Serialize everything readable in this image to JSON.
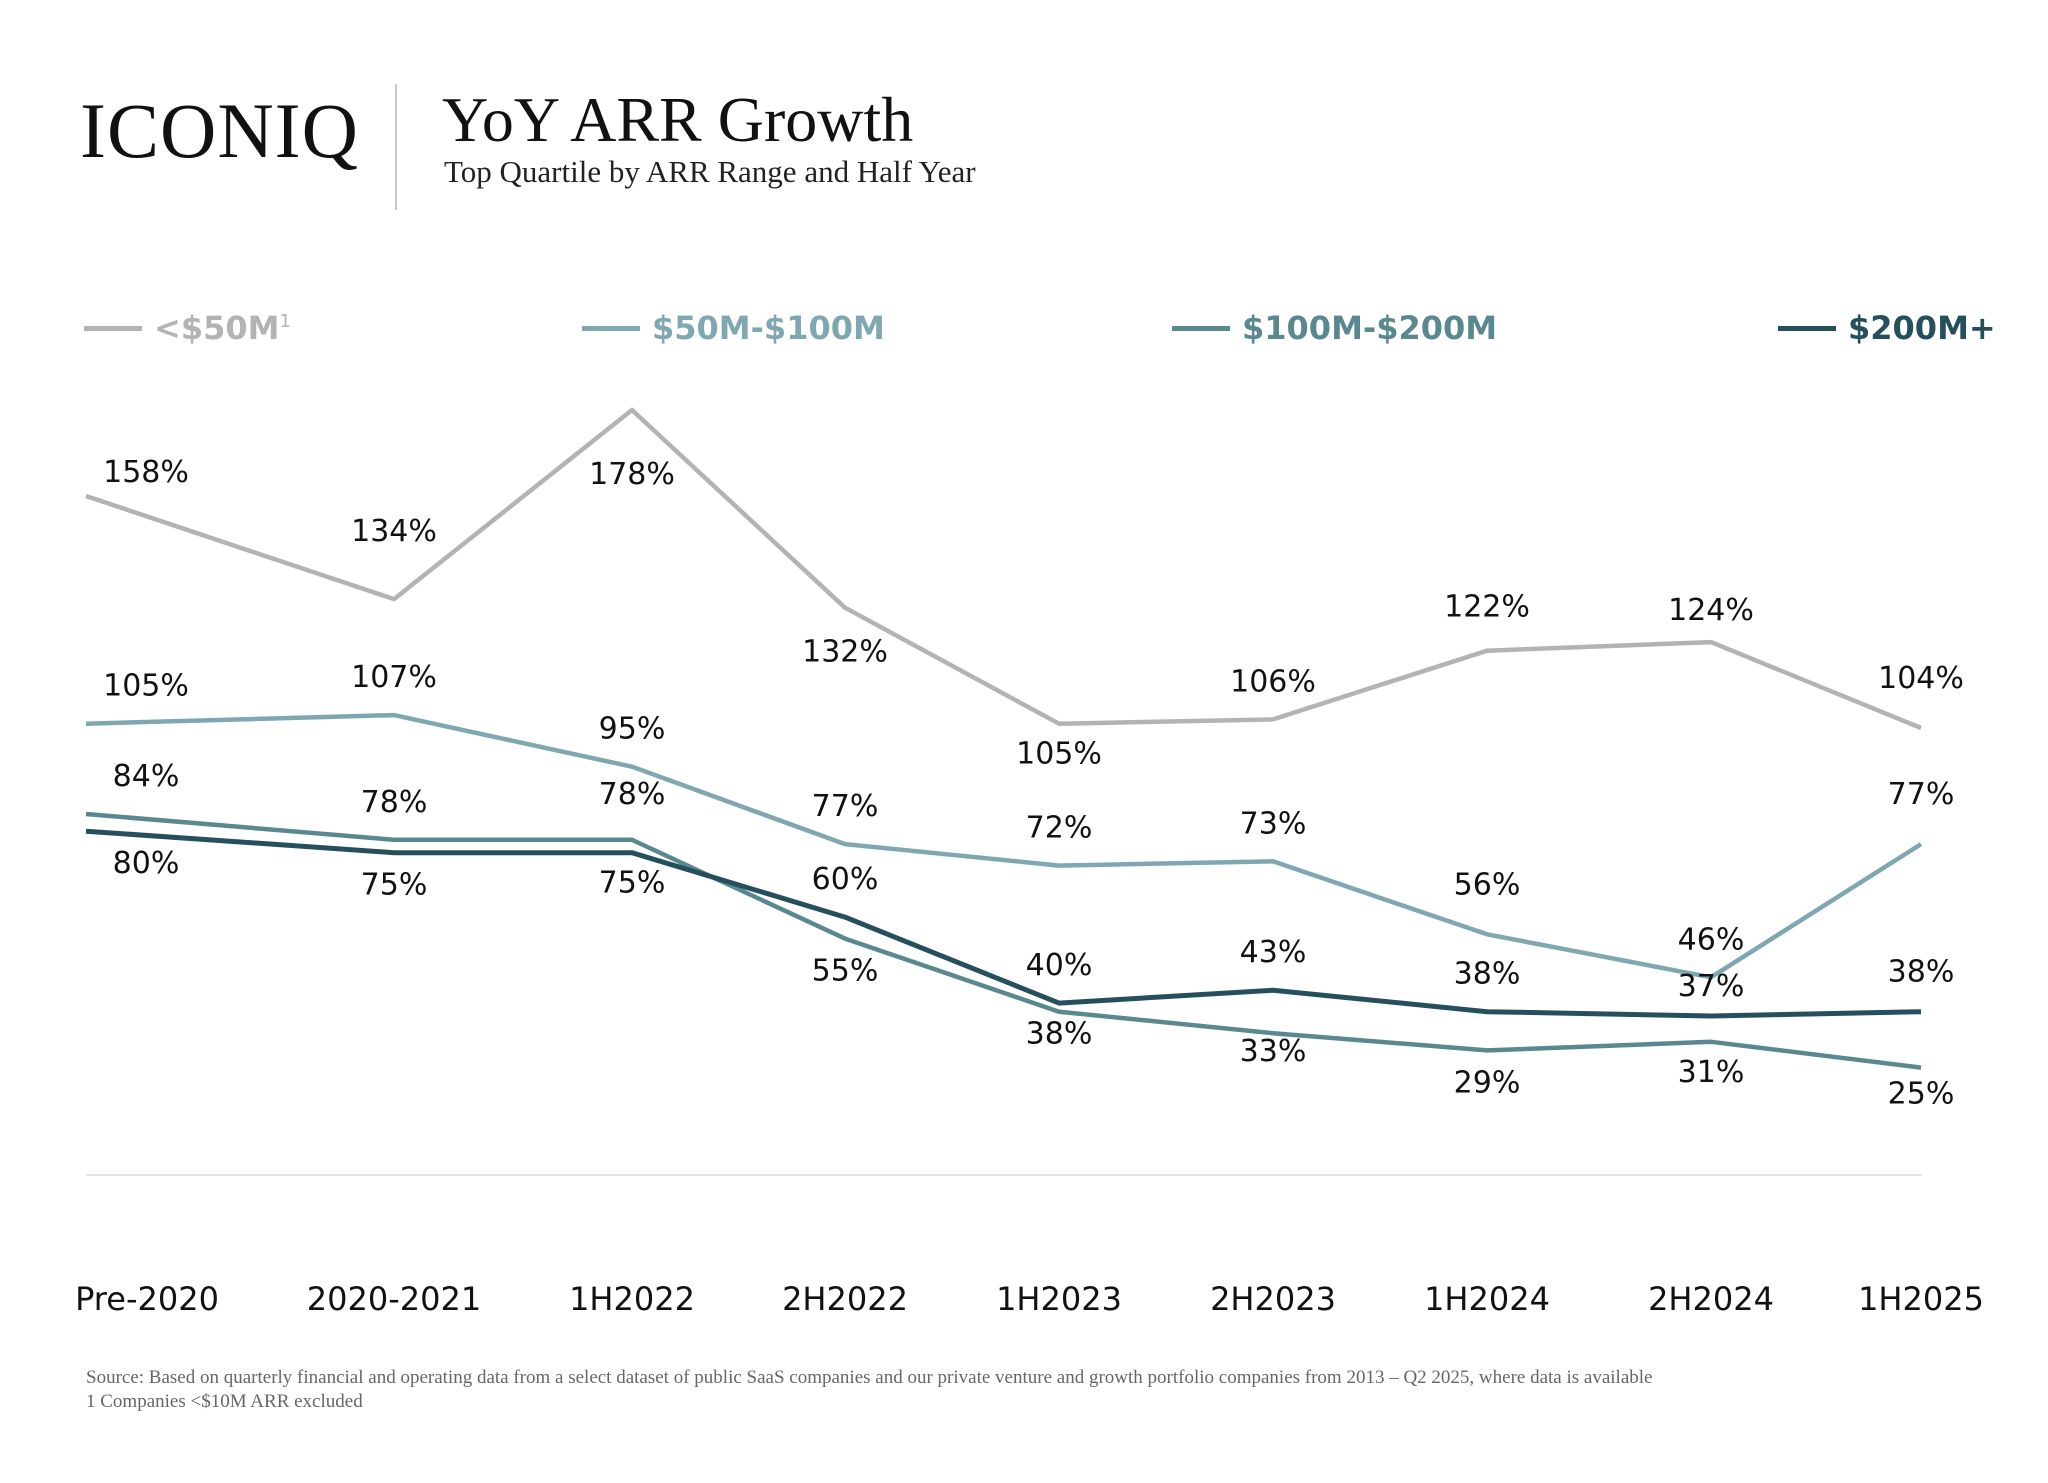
{
  "header": {
    "logo": "ICONIQ",
    "title": "YoY ARR Growth",
    "subtitle": "Top Quartile by ARR Range and Half Year"
  },
  "legend": [
    {
      "label": "<$50M",
      "sup": "1",
      "color": "#b3b3b3"
    },
    {
      "label": "$50M-$100M",
      "sup": "",
      "color": "#7fa7b1"
    },
    {
      "label": "$100M-$200M",
      "sup": "",
      "color": "#5a8891"
    },
    {
      "label": "$200M+",
      "sup": "",
      "color": "#264f5d"
    }
  ],
  "chart_data": {
    "type": "line",
    "categories": [
      "Pre-2020",
      "2020-2021",
      "1H2022",
      "2H2022",
      "1H2023",
      "2H2023",
      "1H2024",
      "2H2024",
      "1H2025"
    ],
    "series": [
      {
        "name": "<$50M",
        "color": "#b3b3b3",
        "values": [
          158,
          134,
          178,
          132,
          105,
          106,
          122,
          124,
          104
        ],
        "labels": [
          "158%",
          "134%",
          "178%",
          "132%",
          "105%",
          "106%",
          "122%",
          "124%",
          "104%"
        ]
      },
      {
        "name": "$50M-$100M",
        "color": "#7fa7b1",
        "values": [
          105,
          107,
          95,
          77,
          72,
          73,
          56,
          46,
          77
        ],
        "labels": [
          "105%",
          "107%",
          "95%",
          "77%",
          "72%",
          "73%",
          "56%",
          "46%",
          "77%"
        ]
      },
      {
        "name": "$100M-$200M",
        "color": "#5a8891",
        "values": [
          84,
          78,
          78,
          55,
          38,
          33,
          29,
          31,
          25
        ],
        "labels": [
          "84%",
          "78%",
          "78%",
          "55%",
          "38%",
          "33%",
          "29%",
          "31%",
          "25%"
        ]
      },
      {
        "name": "$200M+",
        "color": "#264f5d",
        "values": [
          80,
          75,
          75,
          60,
          40,
          43,
          38,
          37,
          38
        ],
        "labels": [
          "80%",
          "75%",
          "75%",
          "60%",
          "40%",
          "43%",
          "38%",
          "37%",
          "38%"
        ]
      }
    ],
    "ylim": [
      0,
      190
    ],
    "grid": false,
    "legend_position": "top"
  },
  "footnotes": [
    "Source: Based on quarterly financial and operating data from a select dataset of public SaaS companies and our private venture and growth portfolio companies from 2013 – Q2 2025, where data is available",
    "1 Companies <$10M ARR excluded"
  ]
}
